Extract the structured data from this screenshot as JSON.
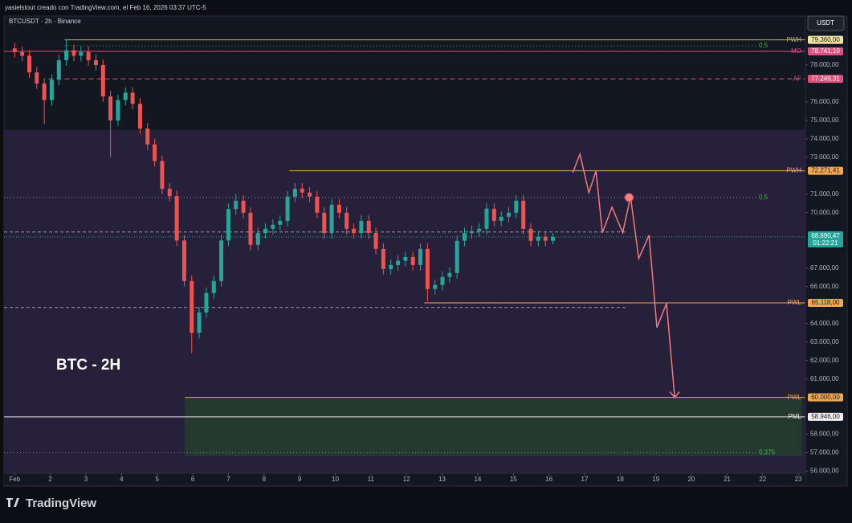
{
  "header": "yasielstout creado con TradingView.com, el Feb 16, 2026 03:37 UTC-5",
  "watermark": "TradingView",
  "chart_data": {
    "type": "candlestick",
    "symbol": "BTCUSDT · 2h · Binance",
    "currency": "USDT",
    "annotation": "BTC - 2H",
    "up_color": "#26a69a",
    "down_color": "#ef5350",
    "x": [
      1.0,
      1.21,
      1.41,
      1.62,
      1.83,
      2.04,
      2.24,
      2.45,
      2.66,
      2.86,
      3.07,
      3.28,
      3.48,
      3.69,
      3.9,
      4.11,
      4.31,
      4.52,
      4.73,
      4.93,
      5.14,
      5.35,
      5.55,
      5.76,
      5.97,
      6.18,
      6.38,
      6.59,
      6.8,
      7.0,
      7.21,
      7.42,
      7.62,
      7.83,
      8.04,
      8.25,
      8.45,
      8.66,
      8.87,
      9.07,
      9.28,
      9.49,
      9.69,
      9.9,
      10.11,
      10.32,
      10.52,
      10.73,
      10.94,
      11.14,
      11.35,
      11.56,
      11.76,
      11.97,
      12.18,
      12.39,
      12.59,
      12.8,
      13.01,
      13.21,
      13.42,
      13.63,
      13.83,
      14.04,
      14.25,
      14.46,
      14.66,
      14.87,
      15.08,
      15.28,
      15.49,
      15.7,
      15.9,
      16.11
    ],
    "open": [
      78900,
      78700,
      78500,
      77600,
      77000,
      76100,
      77200,
      78260,
      78800,
      78500,
      78700,
      78260,
      78000,
      76300,
      75000,
      76100,
      76500,
      75900,
      74560,
      73700,
      72800,
      71300,
      70900,
      68500,
      66300,
      63500,
      64600,
      65650,
      66300,
      68500,
      70200,
      70650,
      70000,
      68260,
      68900,
      69130,
      69350,
      69560,
      70870,
      71300,
      71090,
      70870,
      70000,
      68900,
      70430,
      70000,
      69130,
      68900,
      69560,
      68900,
      68040,
      66950,
      67170,
      67400,
      67600,
      67170,
      68040,
      65870,
      66090,
      66520,
      66740,
      68480,
      68900,
      69000,
      69130,
      70220,
      69560,
      69780,
      70000,
      70650,
      69130,
      68480,
      68700,
      68480
    ],
    "high": [
      79200,
      79000,
      78800,
      77900,
      77300,
      77500,
      78560,
      79360,
      79100,
      79000,
      79000,
      78560,
      78300,
      76600,
      76400,
      76800,
      76800,
      76200,
      74860,
      74000,
      73100,
      71600,
      71200,
      68800,
      66600,
      64900,
      65950,
      66600,
      68800,
      70500,
      71000,
      70950,
      70300,
      69200,
      69430,
      69650,
      69860,
      71170,
      71600,
      71600,
      71390,
      71170,
      70300,
      70730,
      70730,
      70300,
      69430,
      69860,
      69860,
      69200,
      68340,
      67470,
      67700,
      67900,
      67900,
      68340,
      68340,
      66390,
      66820,
      67040,
      68780,
      69200,
      69300,
      69430,
      70520,
      70520,
      70080,
      70300,
      70950,
      70950,
      69430,
      69000,
      69000,
      68900
    ],
    "low": [
      78400,
      78200,
      77300,
      76700,
      74800,
      75800,
      76900,
      77960,
      78200,
      78200,
      77960,
      77700,
      76000,
      73000,
      74700,
      75800,
      75600,
      74260,
      73400,
      72500,
      71000,
      70600,
      68200,
      66000,
      62400,
      63200,
      64300,
      65350,
      66000,
      68200,
      69900,
      69700,
      67960,
      67960,
      68600,
      68830,
      69050,
      69260,
      70570,
      70790,
      70570,
      69700,
      68600,
      68600,
      69700,
      68830,
      68600,
      68600,
      68600,
      67740,
      66650,
      66650,
      66870,
      67100,
      66870,
      66870,
      65200,
      65570,
      65790,
      66220,
      66440,
      68180,
      68600,
      68700,
      68830,
      69260,
      69260,
      69480,
      69700,
      68830,
      68180,
      68180,
      68180,
      68300
    ],
    "close": [
      78700,
      78500,
      77600,
      77000,
      76100,
      77200,
      78260,
      78800,
      78500,
      78700,
      78260,
      78000,
      76300,
      75000,
      76100,
      76500,
      75900,
      74560,
      73700,
      72800,
      71300,
      70900,
      68500,
      66300,
      63500,
      64600,
      65650,
      66300,
      68500,
      70200,
      70650,
      70000,
      68260,
      68900,
      69130,
      69350,
      69560,
      70870,
      71300,
      71090,
      70870,
      70000,
      68900,
      70430,
      70000,
      69130,
      68900,
      69560,
      68900,
      68040,
      66950,
      67170,
      67400,
      67600,
      67170,
      68040,
      65870,
      66090,
      66520,
      66740,
      68480,
      68900,
      69000,
      69130,
      70220,
      69560,
      69780,
      70000,
      70650,
      69130,
      68480,
      68700,
      68480,
      68690
    ],
    "xlim": [
      0.7,
      23.2
    ],
    "xticks": [
      {
        "value": 1,
        "label": "Feb"
      },
      2,
      3,
      4,
      5,
      6,
      7,
      8,
      9,
      10,
      11,
      12,
      13,
      14,
      15,
      16,
      17,
      18,
      19,
      20,
      21,
      22,
      23
    ],
    "ylim": [
      55200,
      80650
    ],
    "yticks": [
      {
        "value": 56000,
        "label": "56.000,00"
      },
      {
        "value": 57000,
        "label": "57.000,00"
      },
      {
        "value": 58000,
        "label": "58.000,00"
      },
      {
        "value": 61000,
        "label": "61.000,00"
      },
      {
        "value": 62000,
        "label": "62.000,00"
      },
      {
        "value": 63000,
        "label": "63.000,00"
      },
      {
        "value": 64000,
        "label": "64.000,00"
      },
      {
        "value": 66000,
        "label": "66.000,00"
      },
      {
        "value": 67000,
        "label": "67.000,00"
      },
      {
        "value": 70000,
        "label": "70.000,00"
      },
      {
        "value": 71000,
        "label": "71.000,00"
      },
      {
        "value": 73000,
        "label": "73.000,00"
      },
      {
        "value": 74000,
        "label": "74.000,00"
      },
      {
        "value": 75000,
        "label": "75.000,00"
      },
      {
        "value": 76000,
        "label": "76.000,00"
      },
      {
        "value": 78000,
        "label": "78.000,00"
      }
    ],
    "last_price": 68690.47,
    "last_price_label": "68.690,47",
    "countdown": "01:22:21",
    "levels": [
      {
        "label": "PWH",
        "value": 79360,
        "value_label": "79.360,00",
        "color": "#c9b458",
        "chip": "#f3e3a0",
        "chip_text": "#222",
        "style": "solid",
        "start": 2.4
      },
      {
        "label": "MO",
        "value": 78741.1,
        "value_label": "78.741,10",
        "color": "#e0507f",
        "chip": "#e0507f",
        "chip_text": "#fff",
        "style": "solid",
        "start": 0.7
      },
      {
        "label": "AF",
        "value": 77249.31,
        "value_label": "77.249,31",
        "color": "#e0507f",
        "chip": "#e0507f",
        "chip_text": "#fff",
        "style": "dashed",
        "start": 1.95
      },
      {
        "label": "PWH",
        "value": 72271.41,
        "value_label": "72.271,41",
        "color": "#f0a850",
        "chip": "#f0a850",
        "chip_text": "#222",
        "style": "solid",
        "start": 8.71
      },
      {
        "label": "PWL",
        "value": 65118,
        "value_label": "65.118,00",
        "color": "#f0a850",
        "chip": "#f0a850",
        "chip_text": "#222",
        "style": "solid",
        "start": 12.5
      },
      {
        "label": "PWL",
        "value": 60000,
        "value_label": "60.000,00",
        "color": "#f0a850",
        "chip": "#f0a850",
        "chip_text": "#222",
        "style": "solid",
        "start": 5.78
      },
      {
        "label": "PML",
        "value": 58946,
        "value_label": "58.946,00",
        "color": "#e8e8e8",
        "chip": "#f0f0f0",
        "chip_text": "#222",
        "style": "solid",
        "start": 0.7
      }
    ],
    "fib_lines": [
      {
        "label": "0,5",
        "value": 79040,
        "start": 2.4
      },
      {
        "label": "0,5",
        "value": 70826,
        "start": 0.7
      },
      {
        "label": "0,375",
        "value": 57000,
        "start": 0.7
      }
    ],
    "fib_color": "#4caf50",
    "reference_lines": [
      {
        "value": 68956,
        "end": 18.2
      },
      {
        "value": 64870,
        "end": 18.2
      }
    ],
    "zones": [
      {
        "top": 74478,
        "bottom": 55200,
        "start": 0.7,
        "end": 23.2,
        "color": "#2a2240"
      },
      {
        "top": 60000,
        "bottom": 56826,
        "start": 5.78,
        "end": 23.1,
        "color": "#24402f"
      }
    ],
    "projection": {
      "color": "#f27a7a",
      "x": [
        16.67,
        16.87,
        17.12,
        17.32,
        17.5,
        17.77,
        18.07,
        18.29,
        18.52,
        18.81,
        19.03,
        19.3,
        19.53
      ],
      "values": [
        72174,
        73174,
        71087,
        72261,
        68913,
        70304,
        68913,
        70870,
        67522,
        68783,
        63783,
        65087,
        60000
      ]
    },
    "target": {
      "x": 18.25,
      "value": 70826
    }
  }
}
